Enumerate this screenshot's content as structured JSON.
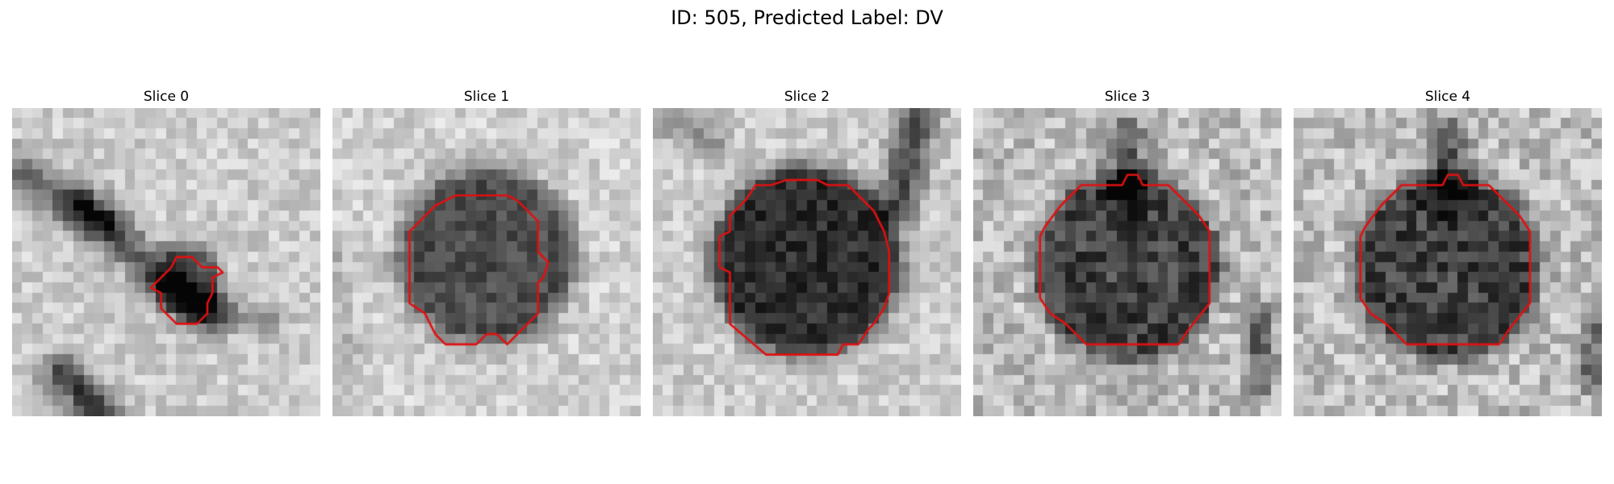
{
  "figure": {
    "title": "ID: 505, Predicted Label: DV"
  },
  "colors": {
    "contour": "#e01010",
    "background": "#ffffff"
  },
  "grid_cells": 30,
  "slices": [
    {
      "title": "Slice 0"
    },
    {
      "title": "Slice 1"
    },
    {
      "title": "Slice 2"
    },
    {
      "title": "Slice 3"
    },
    {
      "title": "Slice 4"
    }
  ]
}
